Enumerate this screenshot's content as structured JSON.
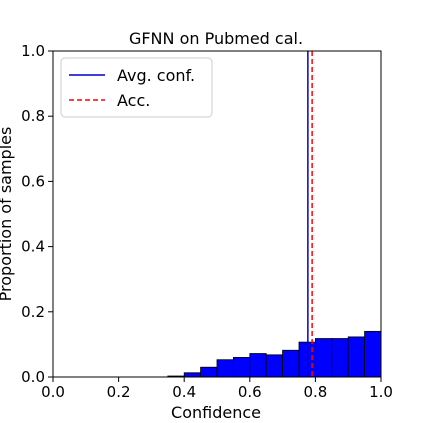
{
  "chart_data": {
    "type": "bar",
    "title": "GFNN on Pubmed cal.",
    "xlabel": "Confidence",
    "ylabel": "Proportion of samples",
    "xlim": [
      0.0,
      1.0
    ],
    "ylim": [
      0.0,
      1.0
    ],
    "xticks": [
      "0.0",
      "0.2",
      "0.4",
      "0.6",
      "0.8",
      "1.0"
    ],
    "yticks": [
      "0.0",
      "0.2",
      "0.4",
      "0.6",
      "0.8",
      "1.0"
    ],
    "bin_width": 0.05,
    "bins": [
      {
        "x": 0.35,
        "value": 0.003
      },
      {
        "x": 0.4,
        "value": 0.013
      },
      {
        "x": 0.45,
        "value": 0.03
      },
      {
        "x": 0.5,
        "value": 0.053
      },
      {
        "x": 0.55,
        "value": 0.06
      },
      {
        "x": 0.6,
        "value": 0.072
      },
      {
        "x": 0.65,
        "value": 0.068
      },
      {
        "x": 0.7,
        "value": 0.082
      },
      {
        "x": 0.75,
        "value": 0.107
      },
      {
        "x": 0.8,
        "value": 0.118
      },
      {
        "x": 0.85,
        "value": 0.118
      },
      {
        "x": 0.9,
        "value": 0.123
      },
      {
        "x": 0.95,
        "value": 0.14
      }
    ],
    "bar_color": "#0000ff",
    "avg_conf": 0.777,
    "acc": 0.79,
    "avg_conf_color": "#0000cc",
    "acc_color": "#ff0000",
    "legend": {
      "position": "upper-left",
      "entries": [
        {
          "label": "Avg. conf.",
          "style": "solid",
          "color": "#0000cc"
        },
        {
          "label": "Acc.",
          "style": "dashed",
          "color": "#ff0000"
        }
      ]
    },
    "grid": false
  }
}
